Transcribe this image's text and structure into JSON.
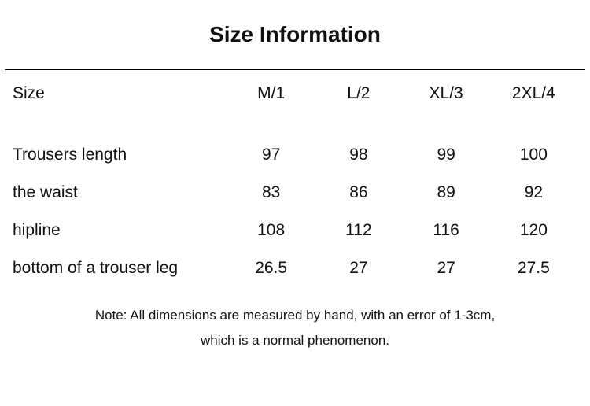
{
  "title": "Size Information",
  "title_fontsize": 28,
  "text_color": "#111111",
  "background_color": "#ffffff",
  "hr_color": "#000000",
  "header": {
    "label": "Size",
    "cols": [
      "M/1",
      "L/2",
      "XL/3",
      "2XL/4"
    ],
    "fontsize": 21
  },
  "rows": [
    {
      "label": "Trousers length",
      "vals": [
        "97",
        "98",
        "99",
        "100"
      ]
    },
    {
      "label": "the waist",
      "vals": [
        "83",
        "86",
        "89",
        "92"
      ]
    },
    {
      "label": "hipline",
      "vals": [
        "108",
        "112",
        "116",
        "120"
      ]
    },
    {
      "label": "bottom of a trouser leg",
      "vals": [
        "26.5",
        "27",
        "27",
        "27.5"
      ]
    }
  ],
  "row_fontsize": 21,
  "note_line1": "Note: All dimensions are measured by hand, with an error of 1-3cm,",
  "note_line2": "which is a normal phenomenon.",
  "note_fontsize": 17
}
